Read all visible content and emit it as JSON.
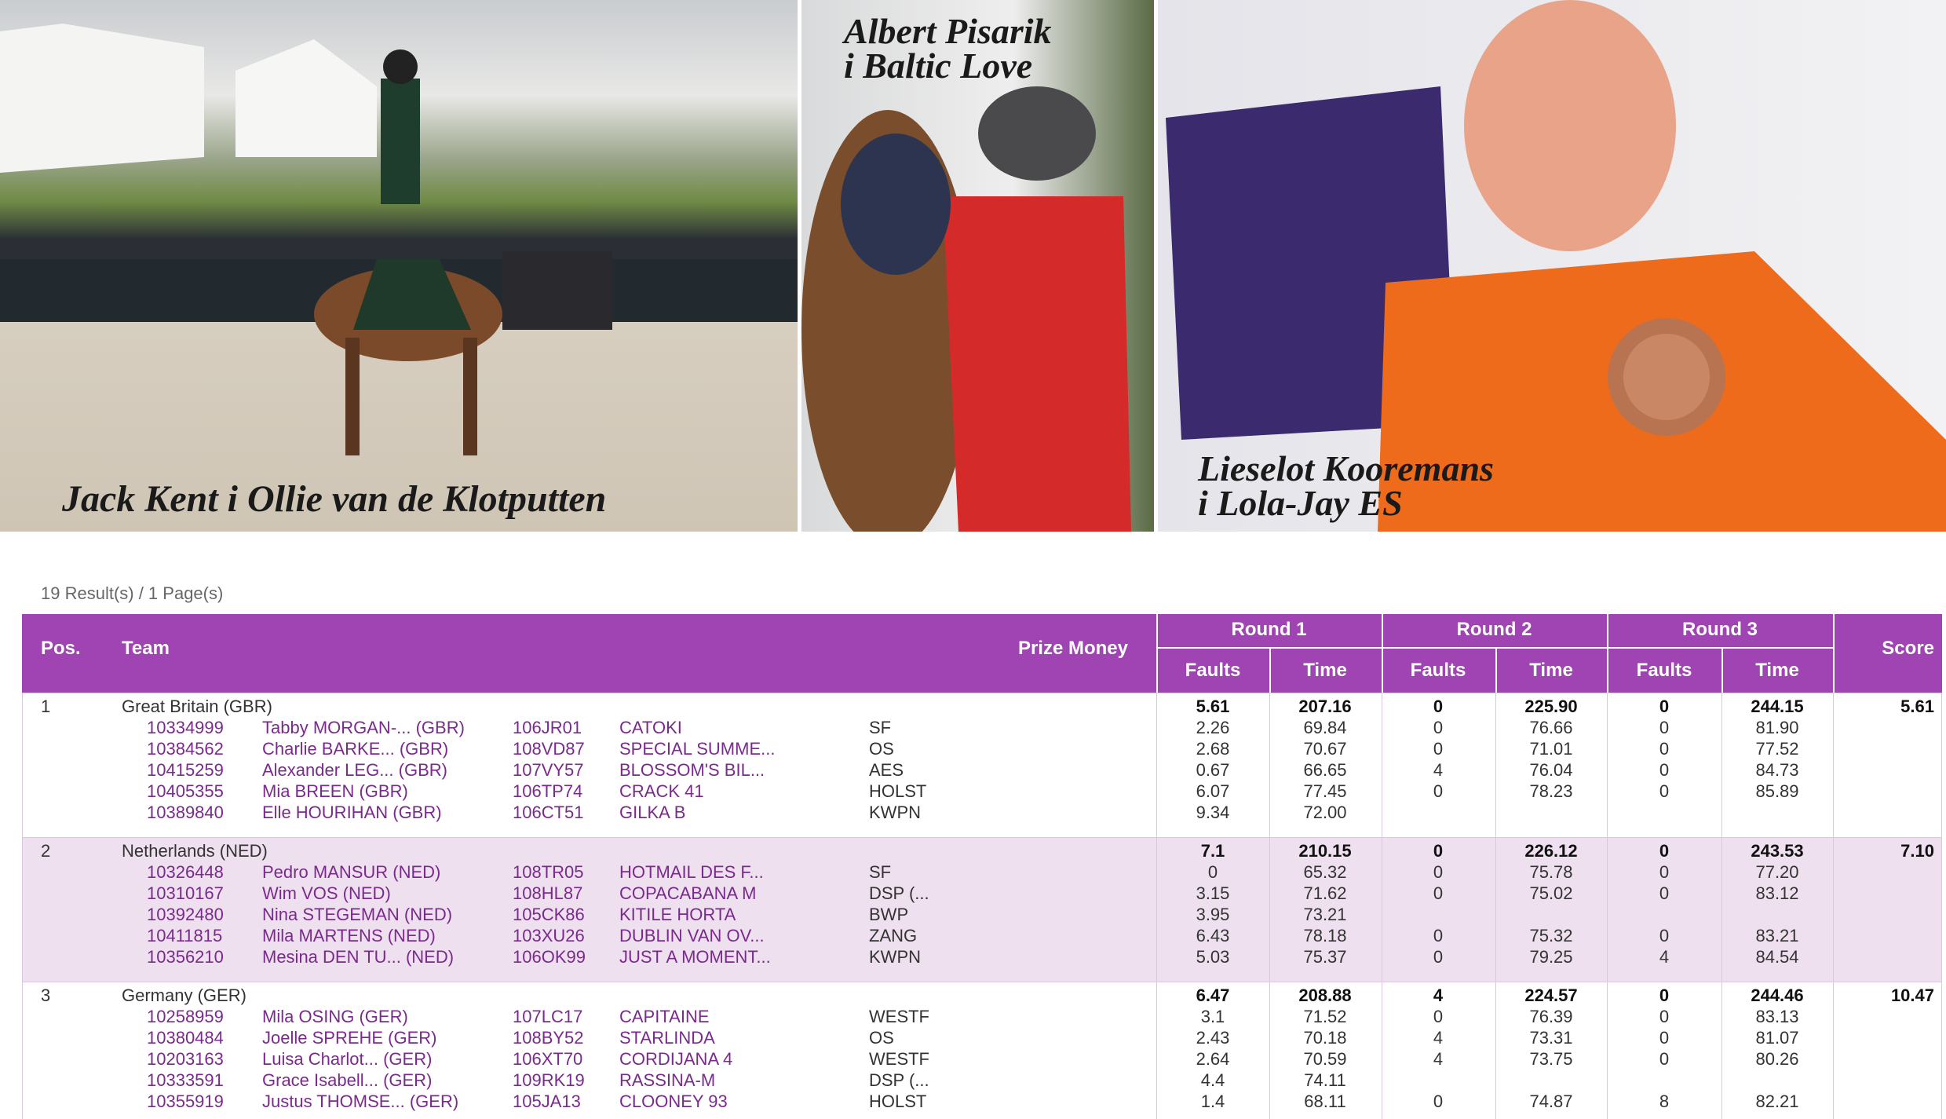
{
  "captions": {
    "photo1": "Jack Kent i Ollie van de Klotputten",
    "photo2": [
      "Albert Pisarik",
      "i Baltic Love"
    ],
    "photo3": [
      "Lieselot Kooremans",
      "i Lola-Jay ES"
    ]
  },
  "results_info": "19 Result(s) / 1 Page(s)",
  "table": {
    "headers": {
      "pos": "Pos.",
      "team": "Team",
      "prize": "Prize Money",
      "rounds": [
        "Round 1",
        "Round 2",
        "Round 3"
      ],
      "faults": "Faults",
      "time": "Time",
      "score": "Score"
    },
    "teams": [
      {
        "pos": "1",
        "team": "Great Britain (GBR)",
        "results": [
          "5.61",
          "207.16",
          "0",
          "225.90",
          "0",
          "244.15"
        ],
        "score": "5.61",
        "riders": [
          {
            "id": "10334999",
            "name": "Tabby MORGAN-... (GBR)",
            "horse_id": "106JR01",
            "horse": "CATOKI",
            "breed": "SF",
            "results": [
              "2.26",
              "69.84",
              "0",
              "76.66",
              "0",
              "81.90"
            ]
          },
          {
            "id": "10384562",
            "name": "Charlie BARKE... (GBR)",
            "horse_id": "108VD87",
            "horse": "SPECIAL SUMME...",
            "breed": "OS",
            "results": [
              "2.68",
              "70.67",
              "0",
              "71.01",
              "0",
              "77.52"
            ]
          },
          {
            "id": "10415259",
            "name": "Alexander LEG... (GBR)",
            "horse_id": "107VY57",
            "horse": "BLOSSOM'S BIL...",
            "breed": "AES",
            "results": [
              "0.67",
              "66.65",
              "4",
              "76.04",
              "0",
              "84.73"
            ]
          },
          {
            "id": "10405355",
            "name": "Mia BREEN (GBR)",
            "horse_id": "106TP74",
            "horse": "CRACK 41",
            "breed": "HOLST",
            "results": [
              "6.07",
              "77.45",
              "0",
              "78.23",
              "0",
              "85.89"
            ]
          },
          {
            "id": "10389840",
            "name": "Elle HOURIHAN (GBR)",
            "horse_id": "106CT51",
            "horse": "GILKA B",
            "breed": "KWPN",
            "results": [
              "9.34",
              "72.00"
            ]
          }
        ]
      },
      {
        "pos": "2",
        "team": "Netherlands (NED)",
        "results": [
          "7.1",
          "210.15",
          "0",
          "226.12",
          "0",
          "243.53"
        ],
        "score": "7.10",
        "riders": [
          {
            "id": "10326448",
            "name": "Pedro MANSUR (NED)",
            "horse_id": "108TR05",
            "horse": "HOTMAIL DES F...",
            "breed": "SF",
            "results": [
              "0",
              "65.32",
              "0",
              "75.78",
              "0",
              "77.20"
            ]
          },
          {
            "id": "10310167",
            "name": "Wim VOS (NED)",
            "horse_id": "108HL87",
            "horse": "COPACABANA M",
            "breed": "DSP (...",
            "results": [
              "3.15",
              "71.62",
              "0",
              "75.02",
              "0",
              "83.12"
            ]
          },
          {
            "id": "10392480",
            "name": "Nina STEGEMAN (NED)",
            "horse_id": "105CK86",
            "horse": "KITILE HORTA",
            "breed": "BWP",
            "results": [
              "3.95",
              "73.21"
            ]
          },
          {
            "id": "10411815",
            "name": "Mila MARTENS (NED)",
            "horse_id": "103XU26",
            "horse": "DUBLIN VAN OV...",
            "breed": "ZANG",
            "results": [
              "6.43",
              "78.18",
              "0",
              "75.32",
              "0",
              "83.21"
            ]
          },
          {
            "id": "10356210",
            "name": "Mesina DEN TU... (NED)",
            "horse_id": "106OK99",
            "horse": "JUST A MOMENT...",
            "breed": "KWPN",
            "results": [
              "5.03",
              "75.37",
              "0",
              "79.25",
              "4",
              "84.54"
            ]
          }
        ]
      },
      {
        "pos": "3",
        "team": "Germany (GER)",
        "results": [
          "6.47",
          "208.88",
          "4",
          "224.57",
          "0",
          "244.46"
        ],
        "score": "10.47",
        "riders": [
          {
            "id": "10258959",
            "name": "Mila OSING (GER)",
            "horse_id": "107LC17",
            "horse": "CAPITAINE",
            "breed": "WESTF",
            "results": [
              "3.1",
              "71.52",
              "0",
              "76.39",
              "0",
              "83.13"
            ]
          },
          {
            "id": "10380484",
            "name": "Joelle SPREHE (GER)",
            "horse_id": "108BY52",
            "horse": "STARLINDA",
            "breed": "OS",
            "results": [
              "2.43",
              "70.18",
              "4",
              "73.31",
              "0",
              "81.07"
            ]
          },
          {
            "id": "10203163",
            "name": "Luisa Charlot... (GER)",
            "horse_id": "106XT70",
            "horse": "CORDIJANA 4",
            "breed": "WESTF",
            "results": [
              "2.64",
              "70.59",
              "4",
              "73.75",
              "0",
              "80.26"
            ]
          },
          {
            "id": "10333591",
            "name": "Grace Isabell... (GER)",
            "horse_id": "109RK19",
            "horse": "RASSINA-M",
            "breed": "DSP (...",
            "results": [
              "4.4",
              "74.11"
            ]
          },
          {
            "id": "10355919",
            "name": "Justus THOMSE... (GER)",
            "horse_id": "105JA13",
            "horse": "CLOONEY 93",
            "breed": "HOLST",
            "results": [
              "1.4",
              "68.11",
              "0",
              "74.87",
              "8",
              "82.21"
            ]
          }
        ]
      }
    ]
  }
}
